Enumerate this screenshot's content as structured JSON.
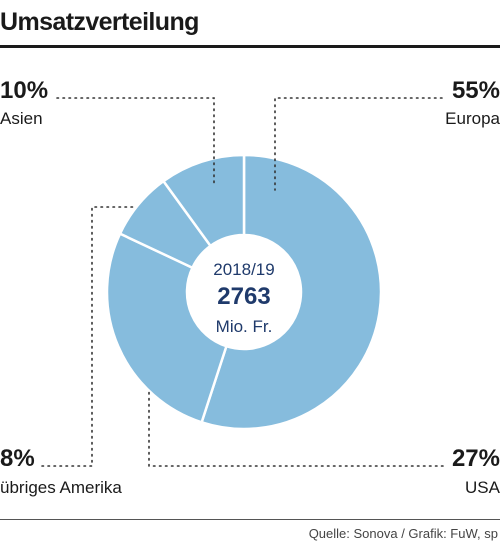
{
  "title": "Umsatzverteilung",
  "source": "Quelle: Sonova / Grafik: FuW, sp",
  "colors": {
    "slice_fill": "#86bcdd",
    "slice_stroke": "#ffffff",
    "center_text": "#1f3a6b",
    "leader": "#333333"
  },
  "center": {
    "year": "2018/19",
    "total": "2763",
    "unit": "Mio. Fr."
  },
  "chart_data": {
    "type": "pie",
    "variant": "donut",
    "title": "Umsatzverteilung",
    "total": 2763,
    "unit": "Mio. Fr.",
    "year": "2018/19",
    "slices": [
      {
        "label": "Europa",
        "value": 55,
        "display": "55%"
      },
      {
        "label": "USA",
        "value": 27,
        "display": "27%"
      },
      {
        "label": "übriges Amerika",
        "value": 8,
        "display": "8%"
      },
      {
        "label": "Asien",
        "value": 10,
        "display": "10%"
      }
    ]
  }
}
